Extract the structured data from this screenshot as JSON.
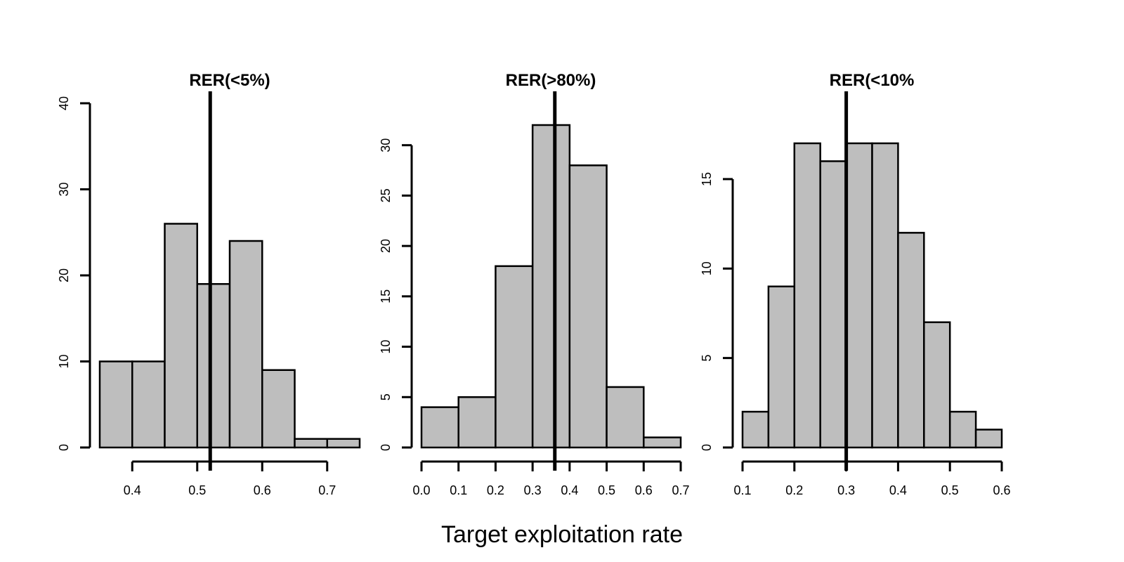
{
  "figure": {
    "xlabel": "Target exploitation rate"
  },
  "chart_data": [
    {
      "type": "bar",
      "title": "RER(<5%)",
      "bins": [
        [
          0.35,
          0.4
        ],
        [
          0.4,
          0.45
        ],
        [
          0.45,
          0.5
        ],
        [
          0.5,
          0.55
        ],
        [
          0.55,
          0.6
        ],
        [
          0.6,
          0.65
        ],
        [
          0.65,
          0.7
        ],
        [
          0.7,
          0.75
        ]
      ],
      "values": [
        10,
        10,
        26,
        19,
        24,
        9,
        1,
        1
      ],
      "reference_line": 0.52,
      "xlim": [
        0.35,
        0.75
      ],
      "ylim": [
        0,
        40
      ],
      "xticks": [
        0.4,
        0.5,
        0.6,
        0.7
      ],
      "xtick_labels": [
        "0.4",
        "0.5",
        "0.6",
        "0.7"
      ],
      "yticks": [
        0,
        10,
        20,
        30,
        40
      ],
      "ytick_labels": [
        "0",
        "10",
        "20",
        "30",
        "40"
      ],
      "bar_color": "#bebebe"
    },
    {
      "type": "bar",
      "title": "RER(>80%)",
      "bins": [
        [
          0.0,
          0.1
        ],
        [
          0.1,
          0.2
        ],
        [
          0.2,
          0.3
        ],
        [
          0.3,
          0.4
        ],
        [
          0.4,
          0.5
        ],
        [
          0.5,
          0.6
        ],
        [
          0.6,
          0.7
        ]
      ],
      "values": [
        4,
        5,
        18,
        32,
        28,
        6,
        1
      ],
      "reference_line": 0.36,
      "xlim": [
        0.0,
        0.7
      ],
      "ylim": [
        0,
        32
      ],
      "xticks": [
        0.0,
        0.1,
        0.2,
        0.3,
        0.4,
        0.5,
        0.6,
        0.7
      ],
      "xtick_labels": [
        "0.0",
        "0.1",
        "0.2",
        "0.3",
        "0.4",
        "0.5",
        "0.6",
        "0.7"
      ],
      "yticks": [
        0,
        5,
        10,
        15,
        20,
        25,
        30
      ],
      "ytick_labels": [
        "0",
        "5",
        "10",
        "15",
        "20",
        "25",
        "30"
      ],
      "bar_color": "#bebebe"
    },
    {
      "type": "bar",
      "title": "RER(<10%",
      "bins": [
        [
          0.1,
          0.15
        ],
        [
          0.15,
          0.2
        ],
        [
          0.2,
          0.25
        ],
        [
          0.25,
          0.3
        ],
        [
          0.3,
          0.35
        ],
        [
          0.35,
          0.4
        ],
        [
          0.4,
          0.45
        ],
        [
          0.45,
          0.5
        ],
        [
          0.5,
          0.55
        ],
        [
          0.55,
          0.6
        ]
      ],
      "values": [
        2,
        9,
        17,
        16,
        17,
        17,
        12,
        7,
        2,
        1
      ],
      "reference_line": 0.3,
      "xlim": [
        0.1,
        0.6
      ],
      "ylim": [
        0,
        17
      ],
      "xticks": [
        0.1,
        0.2,
        0.3,
        0.4,
        0.5,
        0.6
      ],
      "xtick_labels": [
        "0.1",
        "0.2",
        "0.3",
        "0.4",
        "0.5",
        "0.6"
      ],
      "yticks": [
        0,
        5,
        10,
        15
      ],
      "ytick_labels": [
        "0",
        "5",
        "10",
        "15"
      ],
      "bar_color": "#bebebe"
    }
  ]
}
